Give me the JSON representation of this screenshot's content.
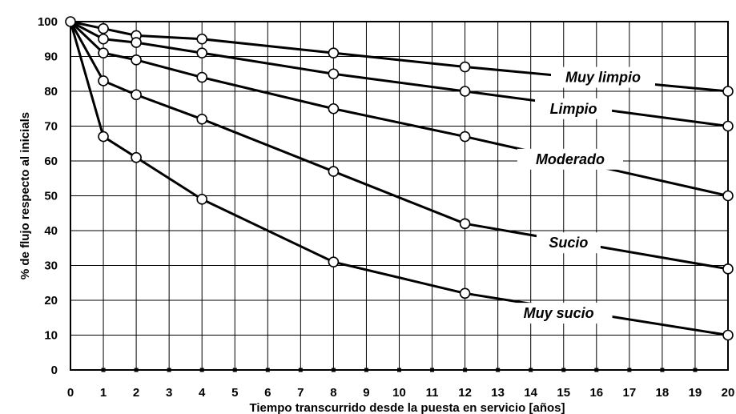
{
  "chart_data": {
    "type": "line",
    "title": "",
    "xlabel": "Tiempo transcurrido desde la puesta en servicio [años]",
    "ylabel": "% de flujo respecto al inicials",
    "xlim": [
      0,
      20
    ],
    "ylim": [
      0,
      100
    ],
    "x_ticks": [
      0,
      1,
      2,
      3,
      4,
      5,
      6,
      7,
      8,
      9,
      10,
      11,
      12,
      13,
      14,
      15,
      16,
      17,
      18,
      19,
      20
    ],
    "y_ticks": [
      0,
      10,
      20,
      30,
      40,
      50,
      60,
      70,
      80,
      90,
      100
    ],
    "grid": true,
    "legend": "inline labels",
    "series": [
      {
        "name": "Muy limpio",
        "x": [
          0,
          1,
          2,
          4,
          8,
          12,
          20
        ],
        "y": [
          100,
          98,
          96,
          95,
          91,
          87,
          80
        ]
      },
      {
        "name": "Limpio",
        "x": [
          0,
          1,
          2,
          4,
          8,
          12,
          20
        ],
        "y": [
          100,
          95,
          94,
          91,
          85,
          80,
          70
        ]
      },
      {
        "name": "Moderado",
        "x": [
          0,
          1,
          2,
          4,
          8,
          12,
          20
        ],
        "y": [
          100,
          91,
          89,
          84,
          75,
          67,
          50
        ]
      },
      {
        "name": "Sucio",
        "x": [
          0,
          1,
          2,
          4,
          8,
          12,
          20
        ],
        "y": [
          100,
          83,
          79,
          72,
          57,
          42,
          29
        ]
      },
      {
        "name": "Muy sucio",
        "x": [
          0,
          1,
          2,
          4,
          8,
          12,
          20
        ],
        "y": [
          100,
          67,
          61,
          49,
          31,
          22,
          10
        ]
      }
    ]
  }
}
